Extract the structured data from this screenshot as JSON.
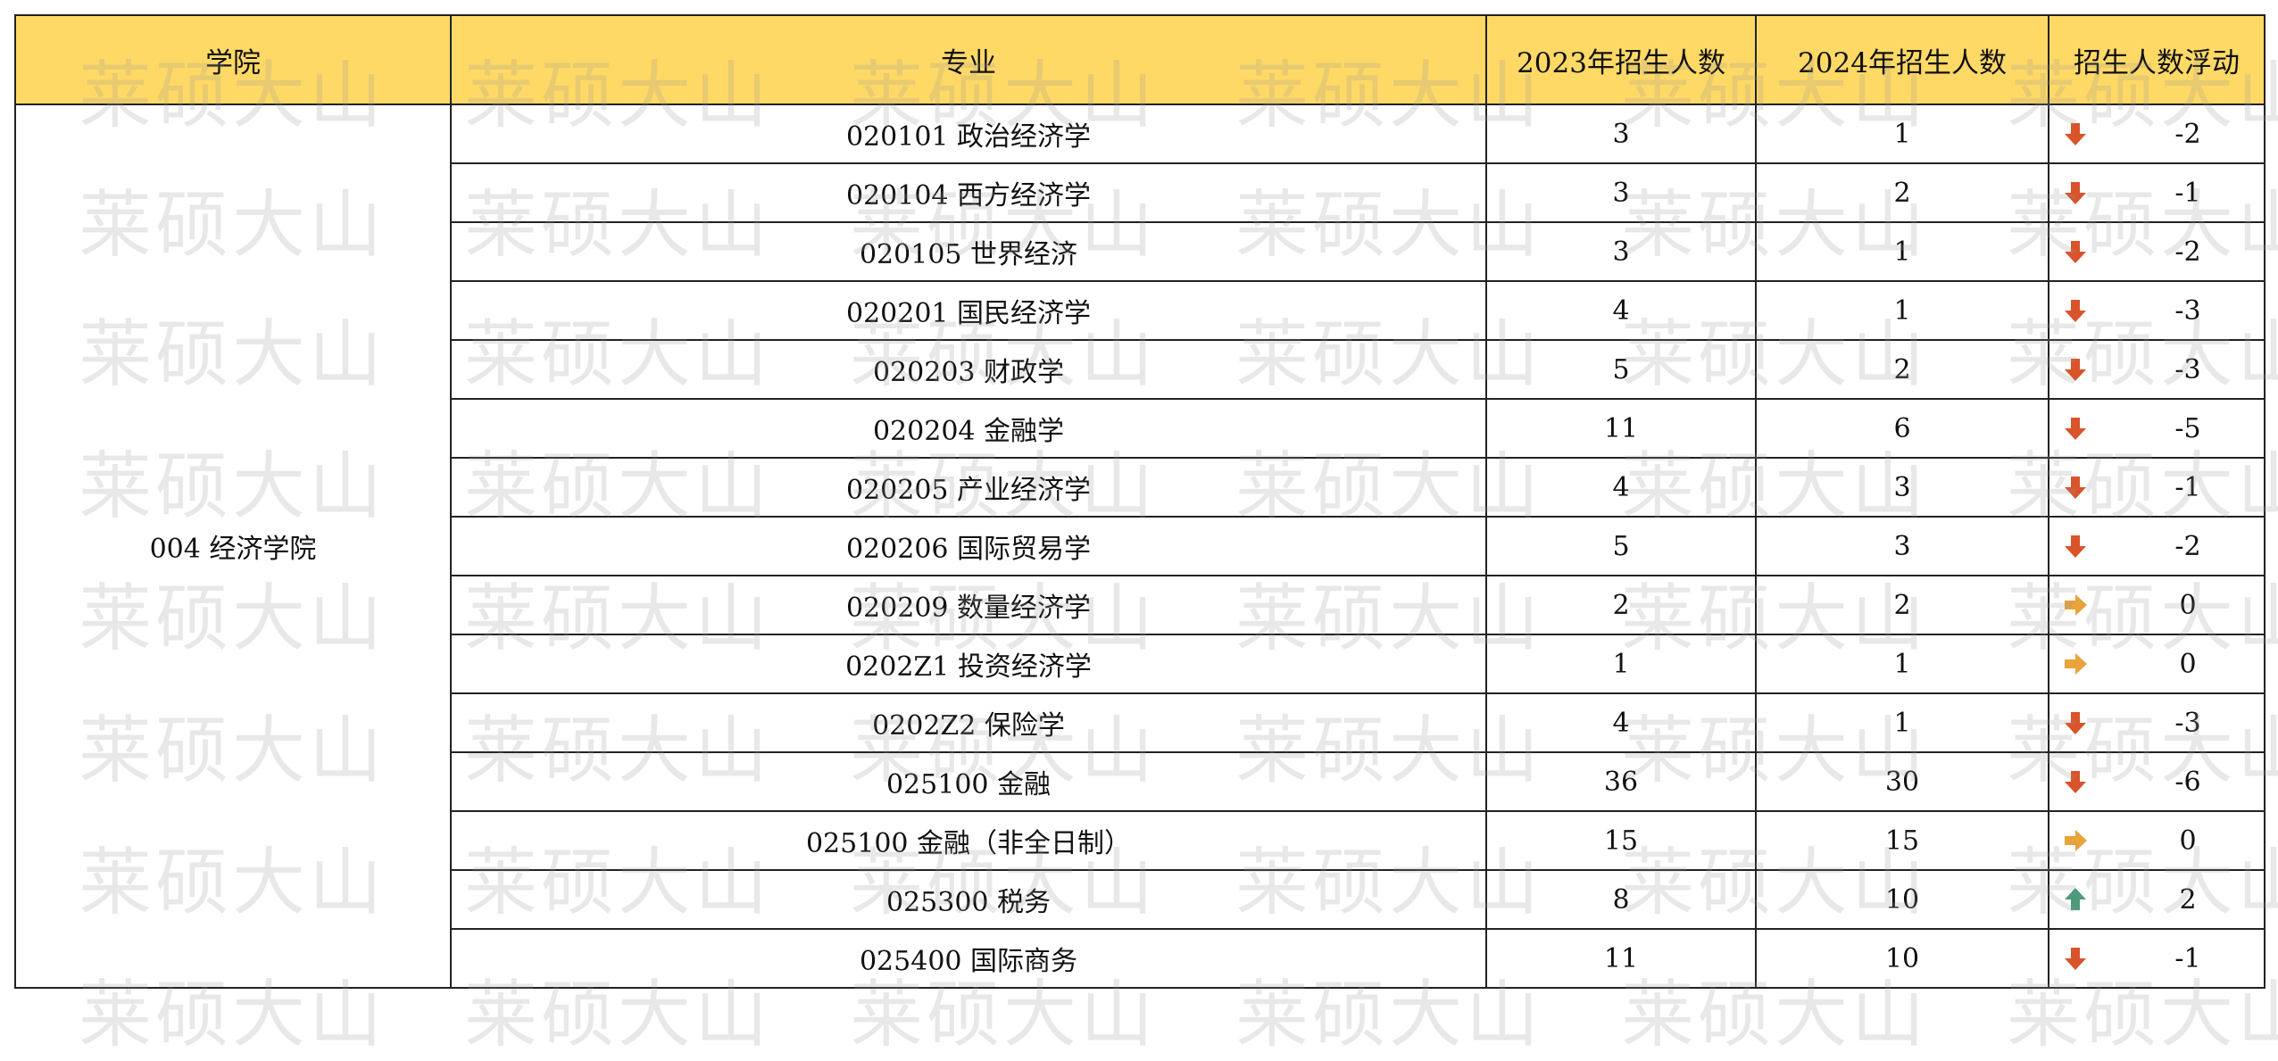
{
  "headers": {
    "college": "学院",
    "major": "专业",
    "y2023": "2023年招生人数",
    "y2024": "2024年招生人数",
    "change": "招生人数浮动"
  },
  "college": "004 经济学院",
  "watermark": "莱硕大山",
  "colors": {
    "header_bg": "#FFD966",
    "down": "#D9532B",
    "flat": "#E8A33A",
    "up": "#4C9A7A"
  },
  "rows": [
    {
      "major": "020101 政治经济学",
      "y2023": "3",
      "y2024": "1",
      "change": "-2",
      "trend": "down"
    },
    {
      "major": "020104 西方经济学",
      "y2023": "3",
      "y2024": "2",
      "change": "-1",
      "trend": "down"
    },
    {
      "major": "020105 世界经济",
      "y2023": "3",
      "y2024": "1",
      "change": "-2",
      "trend": "down"
    },
    {
      "major": "020201 国民经济学",
      "y2023": "4",
      "y2024": "1",
      "change": "-3",
      "trend": "down"
    },
    {
      "major": "020203 财政学",
      "y2023": "5",
      "y2024": "2",
      "change": "-3",
      "trend": "down"
    },
    {
      "major": "020204 金融学",
      "y2023": "11",
      "y2024": "6",
      "change": "-5",
      "trend": "down"
    },
    {
      "major": "020205 产业经济学",
      "y2023": "4",
      "y2024": "3",
      "change": "-1",
      "trend": "down"
    },
    {
      "major": "020206 国际贸易学",
      "y2023": "5",
      "y2024": "3",
      "change": "-2",
      "trend": "down"
    },
    {
      "major": "020209 数量经济学",
      "y2023": "2",
      "y2024": "2",
      "change": "0",
      "trend": "flat"
    },
    {
      "major": "0202Z1 投资经济学",
      "y2023": "1",
      "y2024": "1",
      "change": "0",
      "trend": "flat"
    },
    {
      "major": "0202Z2 保险学",
      "y2023": "4",
      "y2024": "1",
      "change": "-3",
      "trend": "down"
    },
    {
      "major": "025100 金融",
      "y2023": "36",
      "y2024": "30",
      "change": "-6",
      "trend": "down"
    },
    {
      "major": "025100 金融（非全日制）",
      "y2023": "15",
      "y2024": "15",
      "change": "0",
      "trend": "flat"
    },
    {
      "major": "025300 税务",
      "y2023": "8",
      "y2024": "10",
      "change": "2",
      "trend": "up"
    },
    {
      "major": "025400 国际商务",
      "y2023": "11",
      "y2024": "10",
      "change": "-1",
      "trend": "down"
    }
  ]
}
